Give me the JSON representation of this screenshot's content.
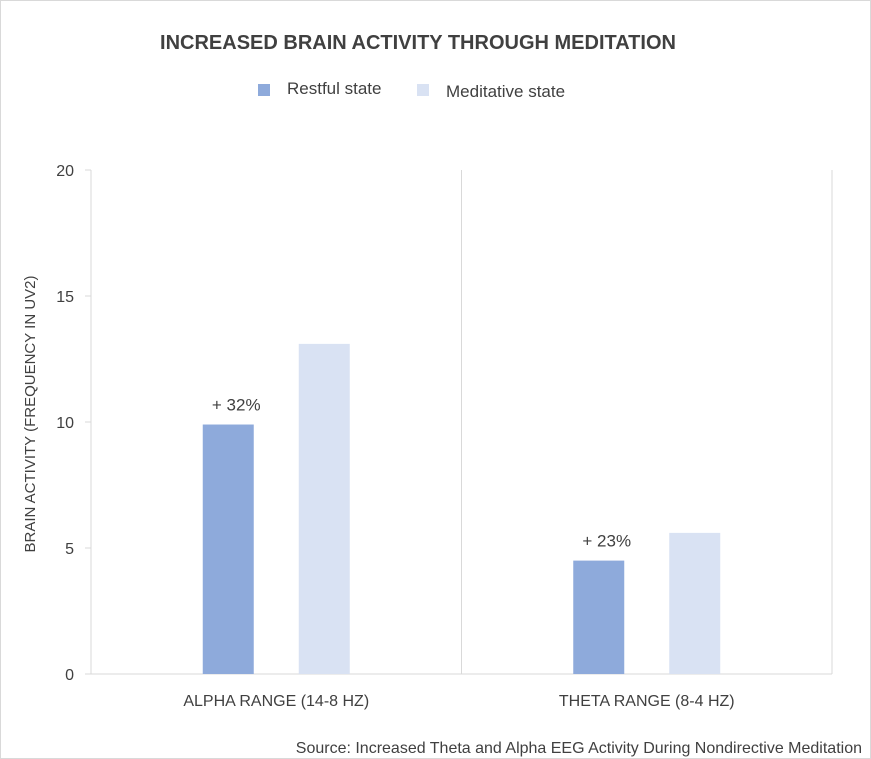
{
  "chart_data": {
    "type": "bar",
    "title": "INCREASED BRAIN ACTIVITY THROUGH MEDITATION",
    "ylabel": "BRAIN ACTIVITY (FREQUENCY IN UV2)",
    "xlabel": "",
    "ylim": [
      0,
      20
    ],
    "yticks": [
      0,
      5,
      10,
      15,
      20
    ],
    "grid": false,
    "legend_position": "top",
    "categories": [
      "ALPHA RANGE (14-8 HZ)",
      "THETA RANGE (8-4 HZ)"
    ],
    "series": [
      {
        "name": "Restful state",
        "color": "#8eaadb",
        "values": [
          9.9,
          4.5
        ]
      },
      {
        "name": "Meditative state",
        "color": "#d9e2f3",
        "values": [
          13.1,
          5.6
        ]
      }
    ],
    "annotations": [
      "+ 32%",
      "+ 23%"
    ],
    "source": "Source: Increased Theta and Alpha EEG Activity During Nondirective Meditation"
  }
}
